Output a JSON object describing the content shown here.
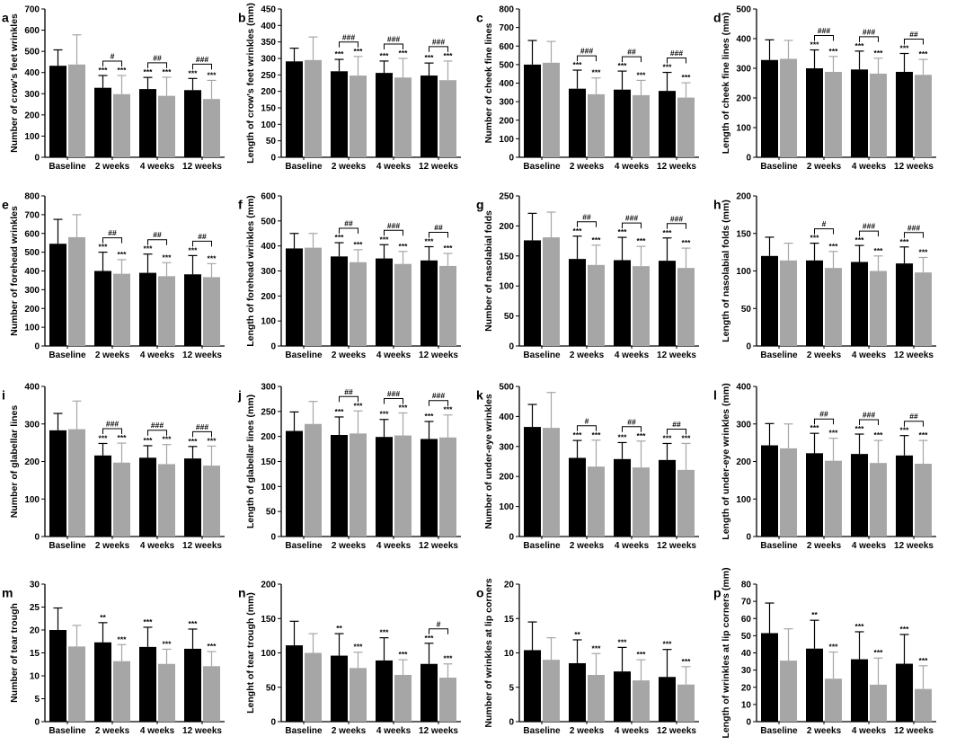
{
  "colors": {
    "black_bar": "#000000",
    "grey_bar": "#a6a6a6"
  },
  "chart_data": [
    {
      "type": "bar",
      "letter": "a",
      "ylabel": "Number of crow's feet wrinkles",
      "ylim": [
        0,
        700
      ],
      "yticks": [
        0,
        100,
        200,
        300,
        400,
        500,
        600,
        700
      ],
      "categories": [
        "Baseline",
        "2 weeks",
        "4 weeks",
        "12 weeks"
      ],
      "series": [
        {
          "values": [
            432,
            328,
            322,
            317
          ],
          "errors": [
            75,
            58,
            55,
            55
          ],
          "sig": [
            "",
            "***",
            "***",
            "***"
          ]
        },
        {
          "values": [
            438,
            298,
            290,
            275
          ],
          "errors": [
            140,
            88,
            88,
            88
          ],
          "sig": [
            "",
            "***",
            "***",
            "***"
          ]
        }
      ],
      "brackets": [
        "",
        "#",
        "##",
        "###"
      ]
    },
    {
      "type": "bar",
      "letter": "b",
      "ylabel": "Length of crow's feet wrinkles (mm)",
      "ylim": [
        0,
        450
      ],
      "yticks": [
        0,
        50,
        100,
        150,
        200,
        250,
        300,
        350,
        400,
        450
      ],
      "categories": [
        "Baseline",
        "2 weeks",
        "4 weeks",
        "12 weeks"
      ],
      "series": [
        {
          "values": [
            291,
            261,
            256,
            248
          ],
          "errors": [
            40,
            36,
            36,
            38
          ],
          "sig": [
            "",
            "***",
            "***",
            "***"
          ]
        },
        {
          "values": [
            295,
            248,
            242,
            234
          ],
          "errors": [
            70,
            58,
            58,
            58
          ],
          "sig": [
            "",
            "***",
            "***",
            "***"
          ]
        }
      ],
      "brackets": [
        "",
        "###",
        "###",
        "###"
      ]
    },
    {
      "type": "bar",
      "letter": "c",
      "ylabel": "Number of cheek fine lines",
      "ylim": [
        0,
        800
      ],
      "yticks": [
        0,
        100,
        200,
        300,
        400,
        500,
        600,
        700,
        800
      ],
      "categories": [
        "Baseline",
        "2 weeks",
        "4 weeks",
        "12 weeks"
      ],
      "series": [
        {
          "values": [
            500,
            370,
            365,
            358
          ],
          "errors": [
            130,
            100,
            100,
            100
          ],
          "sig": [
            "",
            "***",
            "***",
            "***"
          ]
        },
        {
          "values": [
            510,
            340,
            335,
            322
          ],
          "errors": [
            115,
            88,
            80,
            80
          ],
          "sig": [
            "",
            "***",
            "***",
            "***"
          ]
        }
      ],
      "brackets": [
        "",
        "###",
        "##",
        "###"
      ]
    },
    {
      "type": "bar",
      "letter": "d",
      "ylabel": "Length of cheek fine lines (mm)",
      "ylim": [
        0,
        500
      ],
      "yticks": [
        0,
        100,
        200,
        300,
        400,
        500
      ],
      "categories": [
        "Baseline",
        "2 weeks",
        "4 weeks",
        "12 weeks"
      ],
      "series": [
        {
          "values": [
            328,
            300,
            296,
            288
          ],
          "errors": [
            68,
            62,
            62,
            62
          ],
          "sig": [
            "",
            "***",
            "***",
            "***"
          ]
        },
        {
          "values": [
            332,
            288,
            282,
            278
          ],
          "errors": [
            62,
            52,
            52,
            52
          ],
          "sig": [
            "",
            "***",
            "***",
            "***"
          ]
        }
      ],
      "brackets": [
        "",
        "###",
        "###",
        "##"
      ]
    },
    {
      "type": "bar",
      "letter": "e",
      "ylabel": "Number of forehead wrinkles",
      "ylim": [
        0,
        800
      ],
      "yticks": [
        0,
        100,
        200,
        300,
        400,
        500,
        600,
        700,
        800
      ],
      "categories": [
        "Baseline",
        "2 weeks",
        "4 weeks",
        "12 weeks"
      ],
      "series": [
        {
          "values": [
            545,
            400,
            390,
            382
          ],
          "errors": [
            130,
            100,
            100,
            100
          ],
          "sig": [
            "",
            "***",
            "***",
            "***"
          ]
        },
        {
          "values": [
            580,
            385,
            372,
            367
          ],
          "errors": [
            120,
            75,
            72,
            72
          ],
          "sig": [
            "",
            "***",
            "***",
            "***"
          ]
        }
      ],
      "brackets": [
        "",
        "##",
        "##",
        "##"
      ]
    },
    {
      "type": "bar",
      "letter": "f",
      "ylabel": "Length of forehead wrinkles (mm)",
      "ylim": [
        0,
        600
      ],
      "yticks": [
        0,
        100,
        200,
        300,
        400,
        500,
        600
      ],
      "categories": [
        "Baseline",
        "2 weeks",
        "4 weeks",
        "12 weeks"
      ],
      "series": [
        {
          "values": [
            390,
            358,
            350,
            342
          ],
          "errors": [
            60,
            55,
            55,
            55
          ],
          "sig": [
            "",
            "***",
            "***",
            "***"
          ]
        },
        {
          "values": [
            393,
            335,
            328,
            320
          ],
          "errors": [
            57,
            50,
            50,
            50
          ],
          "sig": [
            "",
            "***",
            "***",
            "***"
          ]
        }
      ],
      "brackets": [
        "",
        "##",
        "###",
        "##"
      ]
    },
    {
      "type": "bar",
      "letter": "g",
      "ylabel": "Number of nasolabial folds",
      "ylim": [
        0,
        250
      ],
      "yticks": [
        0,
        50,
        100,
        150,
        200,
        250
      ],
      "categories": [
        "Baseline",
        "2 weeks",
        "4 weeks",
        "12 weeks"
      ],
      "series": [
        {
          "values": [
            176,
            145,
            143,
            142
          ],
          "errors": [
            45,
            38,
            38,
            38
          ],
          "sig": [
            "",
            "***",
            "***",
            "***"
          ]
        },
        {
          "values": [
            181,
            135,
            133,
            130
          ],
          "errors": [
            42,
            33,
            33,
            33
          ],
          "sig": [
            "",
            "***",
            "***",
            "***"
          ]
        }
      ],
      "brackets": [
        "",
        "##",
        "###",
        "###"
      ]
    },
    {
      "type": "bar",
      "letter": "h",
      "ylabel": "Length of nasolabial folds (mm)",
      "ylim": [
        0,
        200
      ],
      "yticks": [
        0,
        50,
        100,
        150,
        200
      ],
      "categories": [
        "Baseline",
        "2 weeks",
        "4 weeks",
        "12 weeks"
      ],
      "series": [
        {
          "values": [
            120,
            114,
            112,
            110
          ],
          "errors": [
            25,
            23,
            22,
            22
          ],
          "sig": [
            "",
            "***",
            "***",
            "***"
          ]
        },
        {
          "values": [
            114,
            104,
            100,
            98
          ],
          "errors": [
            23,
            22,
            20,
            20
          ],
          "sig": [
            "",
            "***",
            "***",
            "***"
          ]
        }
      ],
      "brackets": [
        "",
        "#",
        "###",
        "###"
      ]
    },
    {
      "type": "bar",
      "letter": "i",
      "ylabel": "Number of glabellar lines",
      "ylim": [
        0,
        400
      ],
      "yticks": [
        0,
        100,
        200,
        300,
        400
      ],
      "categories": [
        "Baseline",
        "2 weeks",
        "4 weeks",
        "12 weeks"
      ],
      "series": [
        {
          "values": [
            283,
            216,
            210,
            208
          ],
          "errors": [
            45,
            32,
            32,
            32
          ],
          "sig": [
            "",
            "***",
            "***",
            "***"
          ]
        },
        {
          "values": [
            286,
            197,
            193,
            189
          ],
          "errors": [
            75,
            52,
            52,
            52
          ],
          "sig": [
            "",
            "***",
            "***",
            "***"
          ]
        }
      ],
      "brackets": [
        "",
        "###",
        "###",
        "###"
      ]
    },
    {
      "type": "bar",
      "letter": "j",
      "ylabel": "Length of glabellar lines (mm)",
      "ylim": [
        0,
        300
      ],
      "yticks": [
        0,
        50,
        100,
        150,
        200,
        250,
        300
      ],
      "categories": [
        "Baseline",
        "2 weeks",
        "4 weeks",
        "12 weeks"
      ],
      "series": [
        {
          "values": [
            211,
            203,
            199,
            195
          ],
          "errors": [
            38,
            36,
            35,
            35
          ],
          "sig": [
            "",
            "***",
            "***",
            "***"
          ]
        },
        {
          "values": [
            225,
            206,
            202,
            198
          ],
          "errors": [
            45,
            45,
            45,
            45
          ],
          "sig": [
            "",
            "***",
            "***",
            "***"
          ]
        }
      ],
      "brackets": [
        "",
        "##",
        "###",
        "###"
      ]
    },
    {
      "type": "bar",
      "letter": "k",
      "ylabel": "Number of under-eye wrinkles",
      "ylim": [
        0,
        500
      ],
      "yticks": [
        0,
        100,
        200,
        300,
        400,
        500
      ],
      "categories": [
        "Baseline",
        "2 weeks",
        "4 weeks",
        "12 weeks"
      ],
      "series": [
        {
          "values": [
            365,
            262,
            258,
            255
          ],
          "errors": [
            75,
            58,
            55,
            55
          ],
          "sig": [
            "",
            "***",
            "***",
            "***"
          ]
        },
        {
          "values": [
            362,
            233,
            230,
            222
          ],
          "errors": [
            118,
            88,
            88,
            88
          ],
          "sig": [
            "",
            "***",
            "***",
            "***"
          ]
        }
      ],
      "brackets": [
        "",
        "#",
        "##",
        "##"
      ]
    },
    {
      "type": "bar",
      "letter": "l",
      "ylabel": "Length of under-eye wrinkles (mm)",
      "ylim": [
        0,
        400
      ],
      "yticks": [
        0,
        100,
        200,
        300,
        400
      ],
      "categories": [
        "Baseline",
        "2 weeks",
        "4 weeks",
        "12 weeks"
      ],
      "series": [
        {
          "values": [
            243,
            222,
            220,
            216
          ],
          "errors": [
            58,
            53,
            53,
            53
          ],
          "sig": [
            "",
            "***",
            "***",
            "***"
          ]
        },
        {
          "values": [
            235,
            202,
            196,
            194
          ],
          "errors": [
            65,
            60,
            60,
            62
          ],
          "sig": [
            "",
            "***",
            "***",
            "***"
          ]
        }
      ],
      "brackets": [
        "",
        "##",
        "###",
        "##"
      ]
    },
    {
      "type": "bar",
      "letter": "m",
      "ylabel": "Number of tear trough",
      "ylim": [
        0,
        30
      ],
      "yticks": [
        0,
        5,
        10,
        15,
        20,
        25,
        30
      ],
      "categories": [
        "Baseline",
        "2 weeks",
        "4 weeks",
        "12 weeks"
      ],
      "series": [
        {
          "values": [
            20,
            17.3,
            16.3,
            15.9
          ],
          "errors": [
            4.8,
            4.3,
            4.3,
            4.3
          ],
          "sig": [
            "",
            "**",
            "***",
            "***"
          ]
        },
        {
          "values": [
            16.4,
            13.2,
            12.6,
            12.1
          ],
          "errors": [
            4.6,
            3.6,
            3.2,
            3.2
          ],
          "sig": [
            "",
            "***",
            "***",
            "***"
          ]
        }
      ],
      "brackets": [
        "",
        "",
        "",
        ""
      ]
    },
    {
      "type": "bar",
      "letter": "n",
      "ylabel": "Lenght of tear trough (mm)",
      "ylim": [
        0,
        200
      ],
      "yticks": [
        0,
        50,
        100,
        150,
        200
      ],
      "categories": [
        "Baseline",
        "2 weeks",
        "4 weeks",
        "12 weeks"
      ],
      "series": [
        {
          "values": [
            111,
            96,
            89,
            84
          ],
          "errors": [
            35,
            32,
            33,
            30
          ],
          "sig": [
            "",
            "**",
            "***",
            "***"
          ]
        },
        {
          "values": [
            100,
            78,
            68,
            64
          ],
          "errors": [
            28,
            23,
            22,
            20
          ],
          "sig": [
            "",
            "***",
            "***",
            "***"
          ]
        }
      ],
      "brackets": [
        "",
        "",
        "",
        "#"
      ]
    },
    {
      "type": "bar",
      "letter": "o",
      "ylabel": "Number of wrinkles at lip corners",
      "ylim": [
        0,
        20
      ],
      "yticks": [
        0,
        5,
        10,
        15,
        20
      ],
      "categories": [
        "Baseline",
        "2 weeks",
        "4 weeks",
        "12 weeks"
      ],
      "series": [
        {
          "values": [
            10.4,
            8.5,
            7.3,
            6.5
          ],
          "errors": [
            4.1,
            3.4,
            3.5,
            4
          ],
          "sig": [
            "",
            "**",
            "***",
            "***"
          ]
        },
        {
          "values": [
            9,
            6.8,
            6,
            5.4
          ],
          "errors": [
            3.2,
            3.1,
            3,
            2.6
          ],
          "sig": [
            "",
            "***",
            "***",
            "***"
          ]
        }
      ],
      "brackets": [
        "",
        "",
        "",
        ""
      ]
    },
    {
      "type": "bar",
      "letter": "p",
      "ylabel": "Length of wrinkles at lip corners (mm)",
      "ylim": [
        0,
        80
      ],
      "yticks": [
        0,
        10,
        20,
        30,
        40,
        50,
        60,
        70,
        80
      ],
      "categories": [
        "Baseline",
        "2 weeks",
        "4 weeks",
        "12 weeks"
      ],
      "series": [
        {
          "values": [
            51.5,
            42.5,
            36.3,
            33.7
          ],
          "errors": [
            17.5,
            16.5,
            16,
            17
          ],
          "sig": [
            "",
            "**",
            "***",
            "***"
          ]
        },
        {
          "values": [
            35.5,
            25,
            21.5,
            19
          ],
          "errors": [
            18.5,
            15.5,
            15.5,
            13.5
          ],
          "sig": [
            "",
            "***",
            "***",
            "***"
          ]
        }
      ],
      "brackets": [
        "",
        "",
        "",
        ""
      ]
    }
  ]
}
